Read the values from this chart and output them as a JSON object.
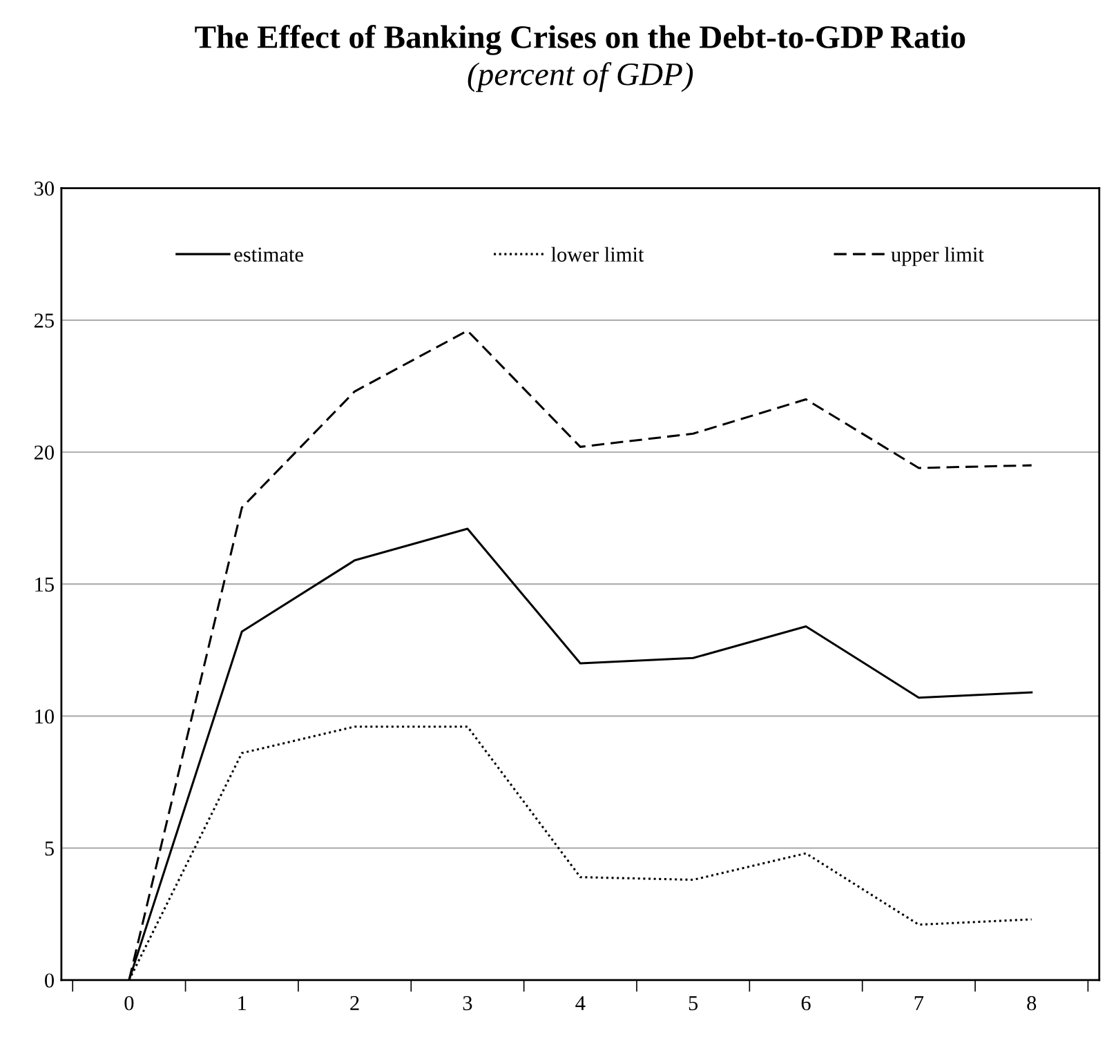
{
  "chart_data": {
    "type": "line",
    "title": "The Effect of Banking Crises on the Debt-to-GDP Ratio",
    "subtitle": "(percent of GDP)",
    "categories": [
      "0",
      "1",
      "2",
      "3",
      "4",
      "5",
      "6",
      "7",
      "8"
    ],
    "series": [
      {
        "name": "estimate",
        "color": "#000000",
        "line_style": "solid",
        "values": [
          0,
          13.2,
          15.9,
          17.1,
          12.0,
          12.2,
          13.4,
          10.7,
          10.9
        ]
      },
      {
        "name": "lower limit",
        "color": "#000000",
        "line_style": "dotted",
        "values": [
          0,
          8.6,
          9.6,
          9.6,
          3.9,
          3.8,
          4.8,
          2.1,
          2.3
        ]
      },
      {
        "name": "upper limit",
        "color": "#000000",
        "line_style": "dashed",
        "values": [
          0,
          17.9,
          22.3,
          24.6,
          20.2,
          20.7,
          22.0,
          19.4,
          19.5
        ]
      }
    ],
    "ylim": [
      0,
      30
    ],
    "yticks": [
      0,
      5,
      10,
      15,
      20,
      25,
      30
    ],
    "grid": "y",
    "legend": "top",
    "marker": "none"
  }
}
